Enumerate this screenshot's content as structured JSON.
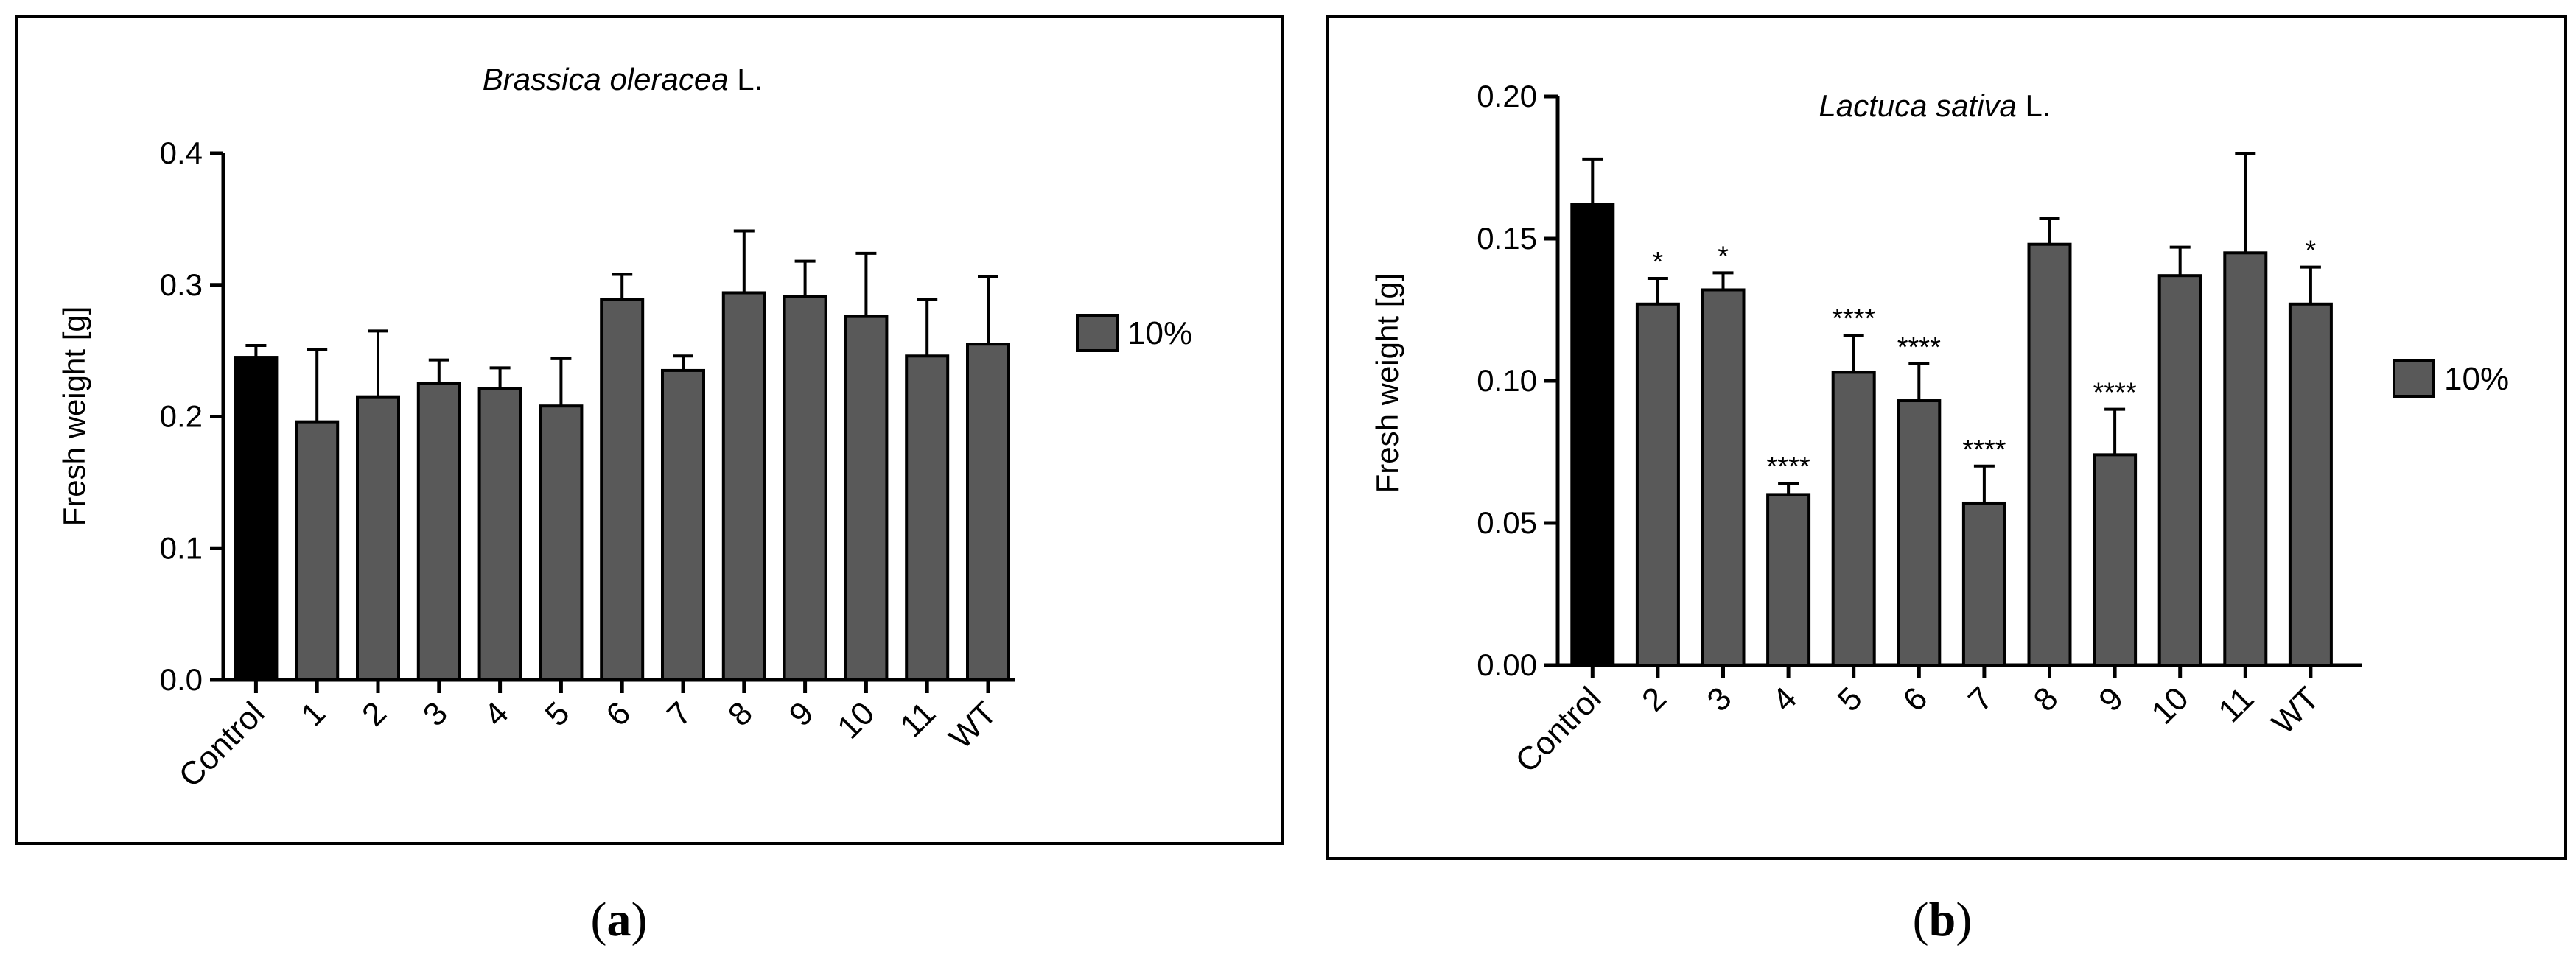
{
  "chart_data": [
    {
      "type": "bar",
      "panel_label": "a",
      "title_italic": "Brassica oleracea",
      "title_suffix": " L.",
      "xlabel": "",
      "ylabel": "Fresh weight [g]",
      "ylim": [
        0,
        0.4
      ],
      "yticks": [
        "0.0",
        "0.1",
        "0.2",
        "0.3",
        "0.4"
      ],
      "categories": [
        "Control",
        "1",
        "2",
        "3",
        "4",
        "5",
        "6",
        "7",
        "8",
        "9",
        "10",
        "11",
        "WT"
      ],
      "values": [
        0.245,
        0.196,
        0.215,
        0.225,
        0.221,
        0.208,
        0.289,
        0.235,
        0.294,
        0.291,
        0.276,
        0.246,
        0.255
      ],
      "errors": [
        0.009,
        0.055,
        0.05,
        0.018,
        0.016,
        0.036,
        0.019,
        0.011,
        0.047,
        0.027,
        0.048,
        0.043,
        0.051
      ],
      "significance": [
        "",
        "",
        "",
        "",
        "",
        "",
        "",
        "",
        "",
        "",
        "",
        "",
        ""
      ],
      "control_color": "#000000",
      "bar_color": "#595959",
      "legend": [
        {
          "label": "10%",
          "color": "#595959"
        }
      ],
      "legend_position": "right",
      "grid": false
    },
    {
      "type": "bar",
      "panel_label": "b",
      "title_italic": "Lactuca sativa",
      "title_suffix": " L.",
      "xlabel": "",
      "ylabel": "Fresh weight [g]",
      "ylim": [
        0,
        0.2
      ],
      "yticks": [
        "0.00",
        "0.05",
        "0.10",
        "0.15",
        "0.20"
      ],
      "categories": [
        "Control",
        "2",
        "3",
        "4",
        "5",
        "6",
        "7",
        "8",
        "9",
        "10",
        "11",
        "WT"
      ],
      "values": [
        0.162,
        0.127,
        0.132,
        0.06,
        0.103,
        0.093,
        0.057,
        0.148,
        0.074,
        0.137,
        0.145,
        0.127
      ],
      "errors": [
        0.016,
        0.009,
        0.006,
        0.004,
        0.013,
        0.013,
        0.013,
        0.009,
        0.016,
        0.01,
        0.035,
        0.013
      ],
      "significance": [
        "",
        "*",
        "*",
        "****",
        "****",
        "****",
        "****",
        "",
        "****",
        "",
        "",
        "*"
      ],
      "control_color": "#000000",
      "bar_color": "#595959",
      "legend": [
        {
          "label": "10%",
          "color": "#595959"
        }
      ],
      "legend_position": "right",
      "grid": false
    }
  ]
}
